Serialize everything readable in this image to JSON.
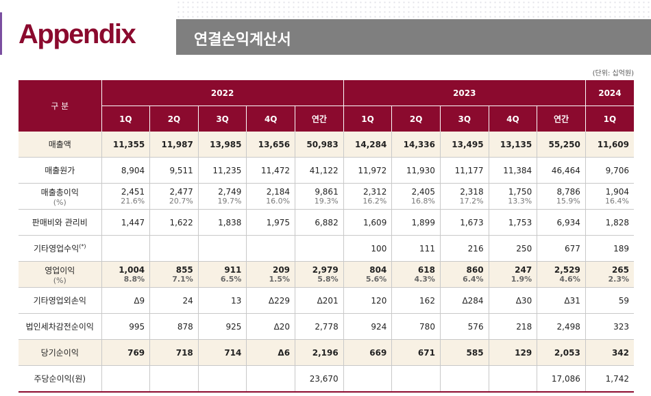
{
  "header": {
    "title": "Appendix",
    "subtitle": "연결손익계산서",
    "unit": "(단위: 십억원)"
  },
  "table": {
    "corner": "구 분",
    "years": [
      {
        "label": "2022",
        "span": 5
      },
      {
        "label": "2023",
        "span": 5
      },
      {
        "label": "2024",
        "span": 1
      }
    ],
    "columns": [
      "1Q",
      "2Q",
      "3Q",
      "4Q",
      "연간",
      "1Q",
      "2Q",
      "3Q",
      "4Q",
      "연간",
      "1Q"
    ],
    "rows": [
      {
        "label": "매출액",
        "emphasis": true,
        "values": [
          "11,355",
          "11,987",
          "13,985",
          "13,656",
          "50,983",
          "14,284",
          "14,336",
          "13,495",
          "13,135",
          "55,250",
          "11,609"
        ]
      },
      {
        "label": "매출원가",
        "values": [
          "8,904",
          "9,511",
          "11,235",
          "11,472",
          "41,122",
          "11,972",
          "11,930",
          "11,177",
          "11,384",
          "46,464",
          "9,706"
        ]
      },
      {
        "label": "매출총이익",
        "sublabel": "(%)",
        "values": [
          "2,451",
          "2,477",
          "2,749",
          "2,184",
          "9,861",
          "2,312",
          "2,405",
          "2,318",
          "1,750",
          "8,786",
          "1,904"
        ],
        "subvalues": [
          "21.6%",
          "20.7%",
          "19.7%",
          "16.0%",
          "19.3%",
          "16.2%",
          "16.8%",
          "17.2%",
          "13.3%",
          "15.9%",
          "16.4%"
        ]
      },
      {
        "label": "판매비와 관리비",
        "values": [
          "1,447",
          "1,622",
          "1,838",
          "1,975",
          "6,882",
          "1,609",
          "1,899",
          "1,673",
          "1,753",
          "6,934",
          "1,828"
        ]
      },
      {
        "label": "기타영업수익",
        "note": "(*)",
        "values": [
          null,
          null,
          null,
          null,
          null,
          "100",
          "111",
          "216",
          "250",
          "677",
          "189"
        ]
      },
      {
        "label": "영업이익",
        "sublabel": "(%)",
        "emphasis": true,
        "values": [
          "1,004",
          "855",
          "911",
          "209",
          "2,979",
          "804",
          "618",
          "860",
          "247",
          "2,529",
          "265"
        ],
        "subvalues": [
          "8.8%",
          "7.1%",
          "6.5%",
          "1.5%",
          "5.8%",
          "5.6%",
          "4.3%",
          "6.4%",
          "1.9%",
          "4.6%",
          "2.3%"
        ]
      },
      {
        "label": "기타영업외손익",
        "values": [
          "Δ9",
          "24",
          "13",
          "Δ229",
          "Δ201",
          "120",
          "162",
          "Δ284",
          "Δ30",
          "Δ31",
          "59"
        ]
      },
      {
        "label": "법인세차감전순이익",
        "values": [
          "995",
          "878",
          "925",
          "Δ20",
          "2,778",
          "924",
          "780",
          "576",
          "218",
          "2,498",
          "323"
        ]
      },
      {
        "label": "당기순이익",
        "emphasis": true,
        "values": [
          "769",
          "718",
          "714",
          "Δ6",
          "2,196",
          "669",
          "671",
          "585",
          "129",
          "2,053",
          "342"
        ]
      },
      {
        "label": "주당순이익(원)",
        "values": [
          null,
          null,
          null,
          null,
          "23,670",
          null,
          null,
          null,
          null,
          "17,086",
          "1,742"
        ]
      }
    ]
  }
}
